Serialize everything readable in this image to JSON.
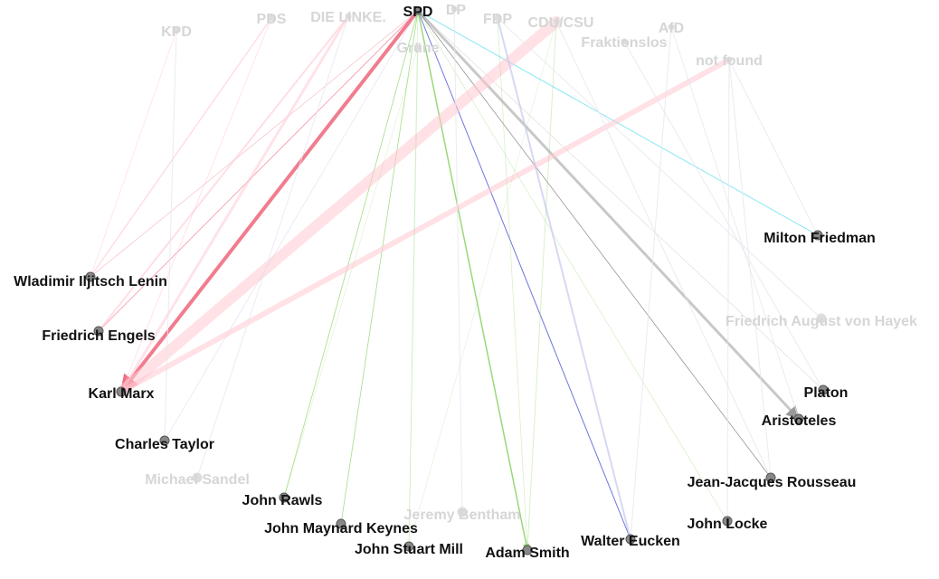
{
  "colors": {
    "background": "#ffffff",
    "label_active": "#111111",
    "label_faded": "#d6d6d6",
    "node_fill": "#888888",
    "node_stroke": "#555555",
    "node_faded": "#dddddd",
    "edge_red": "#f06e82",
    "edge_pink": "#ffc8d2",
    "edge_green": "#8fd46a",
    "edge_blue": "#3c46d2",
    "edge_gray": "#9a9a9a",
    "edge_dark": "#555555",
    "edge_cyan": "#6ae2f0",
    "edge_lavender": "#c8c8f0",
    "edge_faint": "#e6e6ee"
  },
  "parties": [
    {
      "id": "kpd",
      "label": "KPD",
      "active": false
    },
    {
      "id": "pds",
      "label": "PDS",
      "active": false
    },
    {
      "id": "linke",
      "label": "DIE LINKE.",
      "active": false
    },
    {
      "id": "spd",
      "label": "SPD",
      "active": true
    },
    {
      "id": "dp",
      "label": "DP",
      "active": false
    },
    {
      "id": "gruene",
      "label": "Grüne",
      "active": false
    },
    {
      "id": "fdp",
      "label": "FDP",
      "active": false
    },
    {
      "id": "cdu",
      "label": "CDU/CSU",
      "active": false
    },
    {
      "id": "fraktionslos",
      "label": "Fraktionslos",
      "active": false
    },
    {
      "id": "afd",
      "label": "AfD",
      "active": false
    },
    {
      "id": "notfound",
      "label": "not found",
      "active": false
    }
  ],
  "thinkers": [
    {
      "id": "lenin",
      "label": "Wladimir Iljitsch Lenin",
      "active": true
    },
    {
      "id": "engels",
      "label": "Friedrich Engels",
      "active": true
    },
    {
      "id": "marx",
      "label": "Karl Marx",
      "active": true
    },
    {
      "id": "taylor",
      "label": "Charles Taylor",
      "active": true
    },
    {
      "id": "sandel",
      "label": "Michael Sandel",
      "active": false
    },
    {
      "id": "rawls",
      "label": "John Rawls",
      "active": true
    },
    {
      "id": "keynes",
      "label": "John Maynard Keynes",
      "active": true
    },
    {
      "id": "bentham",
      "label": "Jeremy Bentham",
      "active": false
    },
    {
      "id": "mill",
      "label": "John Stuart Mill",
      "active": true
    },
    {
      "id": "smith",
      "label": "Adam Smith",
      "active": true
    },
    {
      "id": "eucken",
      "label": "Walter Eucken",
      "active": true
    },
    {
      "id": "locke",
      "label": "John Locke",
      "active": true
    },
    {
      "id": "rousseau",
      "label": "Jean-Jacques Rousseau",
      "active": true
    },
    {
      "id": "aristoteles",
      "label": "Aristoteles",
      "active": true
    },
    {
      "id": "platon",
      "label": "Platon",
      "active": true
    },
    {
      "id": "hayek",
      "label": "Friedrich August von Hayek",
      "active": false
    },
    {
      "id": "friedman",
      "label": "Milton Friedman",
      "active": true
    }
  ],
  "edges": [
    {
      "from": "spd",
      "to": "marx",
      "color": "edge_red",
      "weight": 4,
      "opacity": 0.9,
      "arrow": true
    },
    {
      "from": "spd",
      "to": "engels",
      "color": "edge_red",
      "weight": 1,
      "opacity": 0.6,
      "arrow": true
    },
    {
      "from": "spd",
      "to": "lenin",
      "color": "edge_red",
      "weight": 0.6,
      "opacity": 0.5,
      "arrow": false
    },
    {
      "from": "spd",
      "to": "aristoteles",
      "color": "edge_gray",
      "weight": 3,
      "opacity": 0.55,
      "arrow": true
    },
    {
      "from": "spd",
      "to": "rousseau",
      "color": "edge_dark",
      "weight": 0.7,
      "opacity": 0.7,
      "arrow": false
    },
    {
      "from": "spd",
      "to": "eucken",
      "color": "edge_blue",
      "weight": 1,
      "opacity": 0.75,
      "arrow": true
    },
    {
      "from": "spd",
      "to": "smith",
      "color": "edge_green",
      "weight": 1.5,
      "opacity": 0.9,
      "arrow": true
    },
    {
      "from": "spd",
      "to": "rawls",
      "color": "edge_green",
      "weight": 0.8,
      "opacity": 0.8,
      "arrow": false
    },
    {
      "from": "spd",
      "to": "keynes",
      "color": "edge_green",
      "weight": 0.8,
      "opacity": 0.8,
      "arrow": false
    },
    {
      "from": "spd",
      "to": "friedman",
      "color": "edge_cyan",
      "weight": 1,
      "opacity": 0.8,
      "arrow": false
    },
    {
      "from": "spd",
      "to": "locke",
      "color": "edge_green",
      "weight": 0.6,
      "opacity": 0.45,
      "arrow": false
    },
    {
      "from": "spd",
      "to": "mill",
      "color": "edge_green",
      "weight": 0.6,
      "opacity": 0.4,
      "arrow": false
    },
    {
      "from": "spd",
      "to": "platon",
      "color": "edge_dark",
      "weight": 0.5,
      "opacity": 0.35,
      "arrow": false
    },
    {
      "from": "spd",
      "to": "taylor",
      "color": "edge_lavender",
      "weight": 0.6,
      "opacity": 0.6,
      "arrow": false
    },
    {
      "from": "cdu",
      "to": "marx",
      "color": "edge_pink",
      "weight": 12,
      "opacity": 0.55,
      "arrow": false
    },
    {
      "from": "notfound",
      "to": "marx",
      "color": "edge_pink",
      "weight": 6,
      "opacity": 0.55,
      "arrow": false
    },
    {
      "from": "linke",
      "to": "engels",
      "color": "edge_pink",
      "weight": 2,
      "opacity": 0.6,
      "arrow": false
    },
    {
      "from": "pds",
      "to": "lenin",
      "color": "edge_pink",
      "weight": 1.5,
      "opacity": 0.6,
      "arrow": false
    },
    {
      "from": "kpd",
      "to": "lenin",
      "color": "edge_pink",
      "weight": 1,
      "opacity": 0.45,
      "arrow": false
    },
    {
      "from": "fdp",
      "to": "eucken",
      "color": "edge_lavender",
      "weight": 2,
      "opacity": 0.7,
      "arrow": false
    },
    {
      "from": "fdp",
      "to": "smith",
      "color": "edge_green",
      "weight": 0.8,
      "opacity": 0.35,
      "arrow": false
    },
    {
      "from": "gruene",
      "to": "mill",
      "color": "edge_green",
      "weight": 0.6,
      "opacity": 0.35,
      "arrow": false
    },
    {
      "from": "gruene",
      "to": "rawls",
      "color": "edge_green",
      "weight": 0.6,
      "opacity": 0.3,
      "arrow": false
    },
    {
      "from": "cdu",
      "to": "smith",
      "color": "edge_green",
      "weight": 1,
      "opacity": 0.35,
      "arrow": false
    },
    {
      "from": "cdu",
      "to": "rousseau",
      "color": "edge_faint",
      "weight": 1,
      "opacity": 0.8,
      "arrow": false
    },
    {
      "from": "fraktionslos",
      "to": "platon",
      "color": "edge_faint",
      "weight": 1,
      "opacity": 0.8,
      "arrow": false
    },
    {
      "from": "afd",
      "to": "aristoteles",
      "color": "edge_faint",
      "weight": 1,
      "opacity": 0.8,
      "arrow": false
    },
    {
      "from": "notfound",
      "to": "rousseau",
      "color": "edge_faint",
      "weight": 1,
      "opacity": 0.8,
      "arrow": false
    },
    {
      "from": "notfound",
      "to": "locke",
      "color": "edge_faint",
      "weight": 1,
      "opacity": 0.8,
      "arrow": false
    },
    {
      "from": "notfound",
      "to": "friedman",
      "color": "edge_faint",
      "weight": 1,
      "opacity": 0.8,
      "arrow": false
    },
    {
      "from": "linke",
      "to": "marx",
      "color": "edge_pink",
      "weight": 3,
      "opacity": 0.5,
      "arrow": false
    },
    {
      "from": "dp",
      "to": "bentham",
      "color": "edge_faint",
      "weight": 1,
      "opacity": 0.8,
      "arrow": false
    },
    {
      "from": "linke",
      "to": "sandel",
      "color": "edge_faint",
      "weight": 1,
      "opacity": 0.8,
      "arrow": false
    },
    {
      "from": "cdu",
      "to": "mill",
      "color": "edge_green",
      "weight": 0.6,
      "opacity": 0.3,
      "arrow": false
    },
    {
      "from": "fdp",
      "to": "hayek",
      "color": "edge_faint",
      "weight": 1,
      "opacity": 0.8,
      "arrow": false
    },
    {
      "from": "kpd",
      "to": "taylor",
      "color": "edge_faint",
      "weight": 1,
      "opacity": 0.8,
      "arrow": false
    },
    {
      "from": "afd",
      "to": "eucken",
      "color": "edge_faint",
      "weight": 1,
      "opacity": 0.8,
      "arrow": false
    },
    {
      "from": "pds",
      "to": "marx",
      "color": "edge_pink",
      "weight": 1,
      "opacity": 0.5,
      "arrow": false
    }
  ]
}
